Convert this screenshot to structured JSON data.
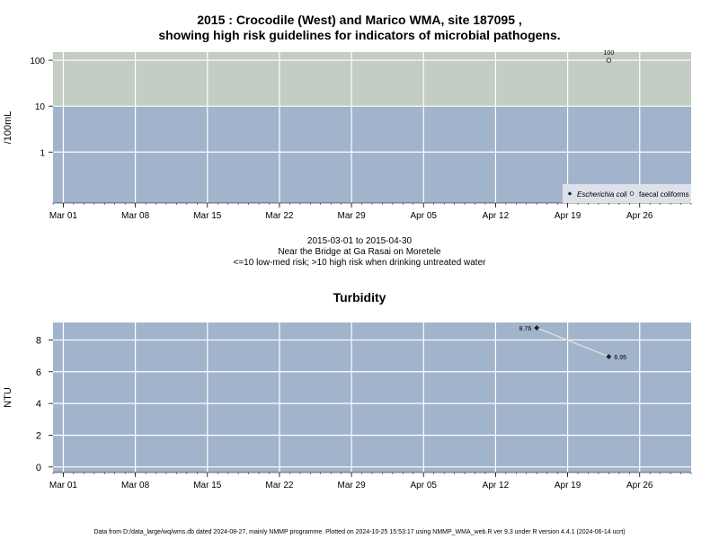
{
  "header": {
    "title_line1": "2015 : Crocodile (West) and Marico WMA, site 187095 ,",
    "title_line2": "showing high risk guidelines for indicators of microbial pathogens."
  },
  "subtitle": {
    "date_range": "2015-03-01 to 2015-04-30",
    "site_name": "Near the Bridge at Ga Rasai on Moretele",
    "risk_note": "<=10 low-med risk; >10 high risk when drinking untreated water"
  },
  "footer": {
    "text": "Data from D:/data_large/wq/wms.db dated 2024-08-27, mainly NMMP programme. Plotted on 2024-10-25 15:53:17 using NMMP_WMA_web.R ver 9.3 under R version 4.4.1 (2024-06-14 ucrt)"
  },
  "colors": {
    "low_risk_band": "#a2b3cc",
    "high_risk_band": "#c3cdc3",
    "grid": "#ffffff",
    "points": "#222222",
    "line": "#d9d9d9"
  },
  "chart_data": [
    {
      "type": "scatter",
      "title": "",
      "ylabel": "/100mL",
      "y_scale": "log",
      "y_ticks": [
        1,
        10,
        100
      ],
      "x_ticks": [
        "Mar 01",
        "Mar 08",
        "Mar 15",
        "Mar 22",
        "Mar 29",
        "Apr 05",
        "Apr 12",
        "Apr 19",
        "Apr 26"
      ],
      "x_range": [
        "2015-02-28",
        "2015-05-01"
      ],
      "bands": [
        {
          "label": "low-med risk",
          "from": 0,
          "to": 10,
          "color": "#a2b3cc"
        },
        {
          "label": "high risk",
          "from": 10,
          "to": 100,
          "color": "#c3cdc3"
        }
      ],
      "series": [
        {
          "name": "Escherichia coli",
          "marker": "filled-diamond",
          "points": []
        },
        {
          "name": "faecal coliforms",
          "marker": "open-circle",
          "points": [
            {
              "x": "2015-04-23",
              "y": 100,
              "label": "100"
            }
          ]
        }
      ],
      "legend_position": "bottom-right",
      "grid": true
    },
    {
      "type": "line",
      "title": "Turbidity",
      "ylabel": "NTU",
      "y_ticks": [
        0,
        2,
        4,
        6,
        8
      ],
      "ylim": [
        -0.35,
        9.1
      ],
      "x_ticks": [
        "Mar 01",
        "Mar 08",
        "Mar 15",
        "Mar 22",
        "Mar 29",
        "Apr 05",
        "Apr 12",
        "Apr 19",
        "Apr 26"
      ],
      "x_range": [
        "2015-02-28",
        "2015-05-01"
      ],
      "series": [
        {
          "marker": "filled-diamond",
          "points": [
            {
              "x": "2015-04-16",
              "y": 8.76,
              "label": "8.76"
            },
            {
              "x": "2015-04-23",
              "y": 6.95,
              "label": "6.95"
            }
          ]
        }
      ],
      "grid": true
    }
  ]
}
